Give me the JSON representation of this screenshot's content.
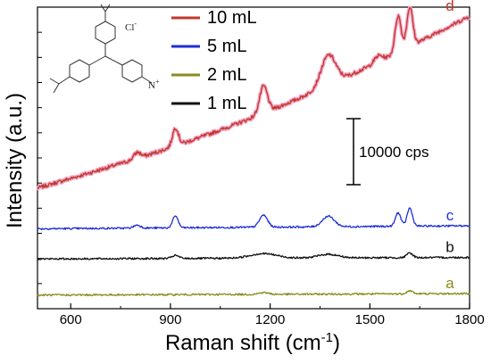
{
  "chart_data": {
    "type": "line",
    "xlabel": "Raman shift (cm",
    "xlabel_sup": "-1",
    "xlabel_tail": ")",
    "ylabel": "Intensity (a.u.)",
    "xlim": [
      500,
      1800
    ],
    "xticks": [
      600,
      900,
      1200,
      1500,
      1800
    ],
    "legend_placement": "top-center",
    "series": [
      {
        "name": "10 mL",
        "label": "d",
        "color": "#c0392b",
        "halo": "#f4a6c6",
        "baseline": [
          [
            500,
            0.4
          ],
          [
            1800,
            0.97
          ]
        ],
        "peaks": [
          [
            800,
            0.02,
            10
          ],
          [
            915,
            0.06,
            9
          ],
          [
            1180,
            0.09,
            12
          ],
          [
            1375,
            0.1,
            22
          ],
          [
            1525,
            0.02,
            12
          ],
          [
            1585,
            0.12,
            9
          ],
          [
            1620,
            0.13,
            9
          ]
        ]
      },
      {
        "name": "5 mL",
        "label": "c",
        "color": "#1f2fd6",
        "halo": "",
        "baseline": [
          [
            500,
            0.265
          ],
          [
            1800,
            0.275
          ]
        ],
        "peaks": [
          [
            800,
            0.01,
            10
          ],
          [
            915,
            0.04,
            8
          ],
          [
            1180,
            0.04,
            12
          ],
          [
            1375,
            0.035,
            18
          ],
          [
            1585,
            0.045,
            8
          ],
          [
            1620,
            0.06,
            8
          ]
        ]
      },
      {
        "name": "2 mL",
        "label": "a",
        "color": "#8b8b1e",
        "halo": "",
        "baseline": [
          [
            500,
            0.045
          ],
          [
            1800,
            0.05
          ]
        ],
        "peaks": [
          [
            1180,
            0.006,
            14
          ],
          [
            1620,
            0.01,
            9
          ]
        ]
      },
      {
        "name": "1 mL",
        "label": "b",
        "color": "#111111",
        "halo": "",
        "baseline": [
          [
            500,
            0.165
          ],
          [
            1800,
            0.17
          ]
        ],
        "peaks": [
          [
            915,
            0.01,
            10
          ],
          [
            1180,
            0.015,
            40
          ],
          [
            1375,
            0.012,
            30
          ],
          [
            1620,
            0.015,
            9
          ]
        ]
      }
    ],
    "scale_bar": {
      "label": "10000 cps"
    },
    "inset": {
      "description": "crystal violet structure",
      "counterion": "Cl",
      "counterion_charge": "-",
      "n_charge": "+"
    }
  }
}
